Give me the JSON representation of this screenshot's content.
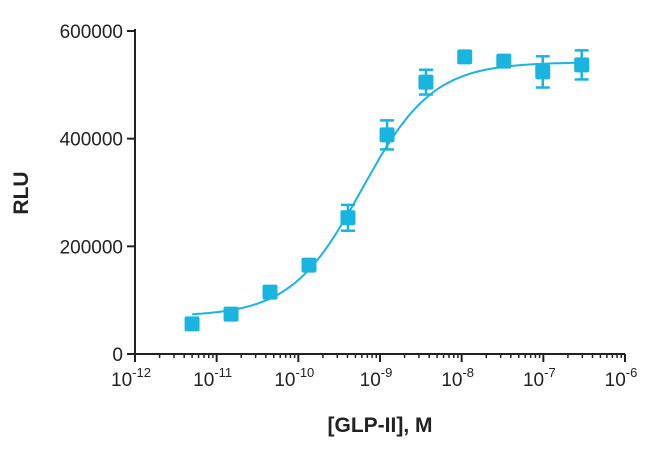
{
  "chart_data": {
    "type": "scatter",
    "title": "",
    "xlabel": "[GLP-II], M",
    "ylabel": "RLU",
    "xscale": "log",
    "xlim": [
      1e-12,
      1e-06
    ],
    "ylim": [
      0,
      600000
    ],
    "grid": false,
    "x_ticks": [
      {
        "exp": "-12"
      },
      {
        "exp": "-11"
      },
      {
        "exp": "-10"
      },
      {
        "exp": "-9"
      },
      {
        "exp": "-8"
      },
      {
        "exp": "-7"
      },
      {
        "exp": "-6"
      }
    ],
    "x_tick_base": "10",
    "y_ticks": [
      "0",
      "200000",
      "400000",
      "600000"
    ],
    "y_tick_values": [
      0,
      200000,
      400000,
      600000
    ],
    "color": "#1ab4e0",
    "marker": "square",
    "points": [
      {
        "x": 5e-12,
        "y": 56000,
        "err": 0
      },
      {
        "x": 1.5e-11,
        "y": 74000,
        "err": 0
      },
      {
        "x": 4.5e-11,
        "y": 115000,
        "err": 0
      },
      {
        "x": 1.35e-10,
        "y": 165000,
        "err": 0
      },
      {
        "x": 4.05e-10,
        "y": 253000,
        "err": 24000
      },
      {
        "x": 1.22e-09,
        "y": 407000,
        "err": 27000
      },
      {
        "x": 3.65e-09,
        "y": 505000,
        "err": 23000
      },
      {
        "x": 1.09e-08,
        "y": 552000,
        "err": 0
      },
      {
        "x": 3.28e-08,
        "y": 544000,
        "err": 0
      },
      {
        "x": 9.84e-08,
        "y": 524000,
        "err": 29000
      },
      {
        "x": 2.95e-07,
        "y": 537000,
        "err": 27000
      }
    ],
    "fit": {
      "model": "4PL",
      "bottom": 70000,
      "top": 542000,
      "ec50": 6e-10,
      "hill": 1.0
    }
  }
}
